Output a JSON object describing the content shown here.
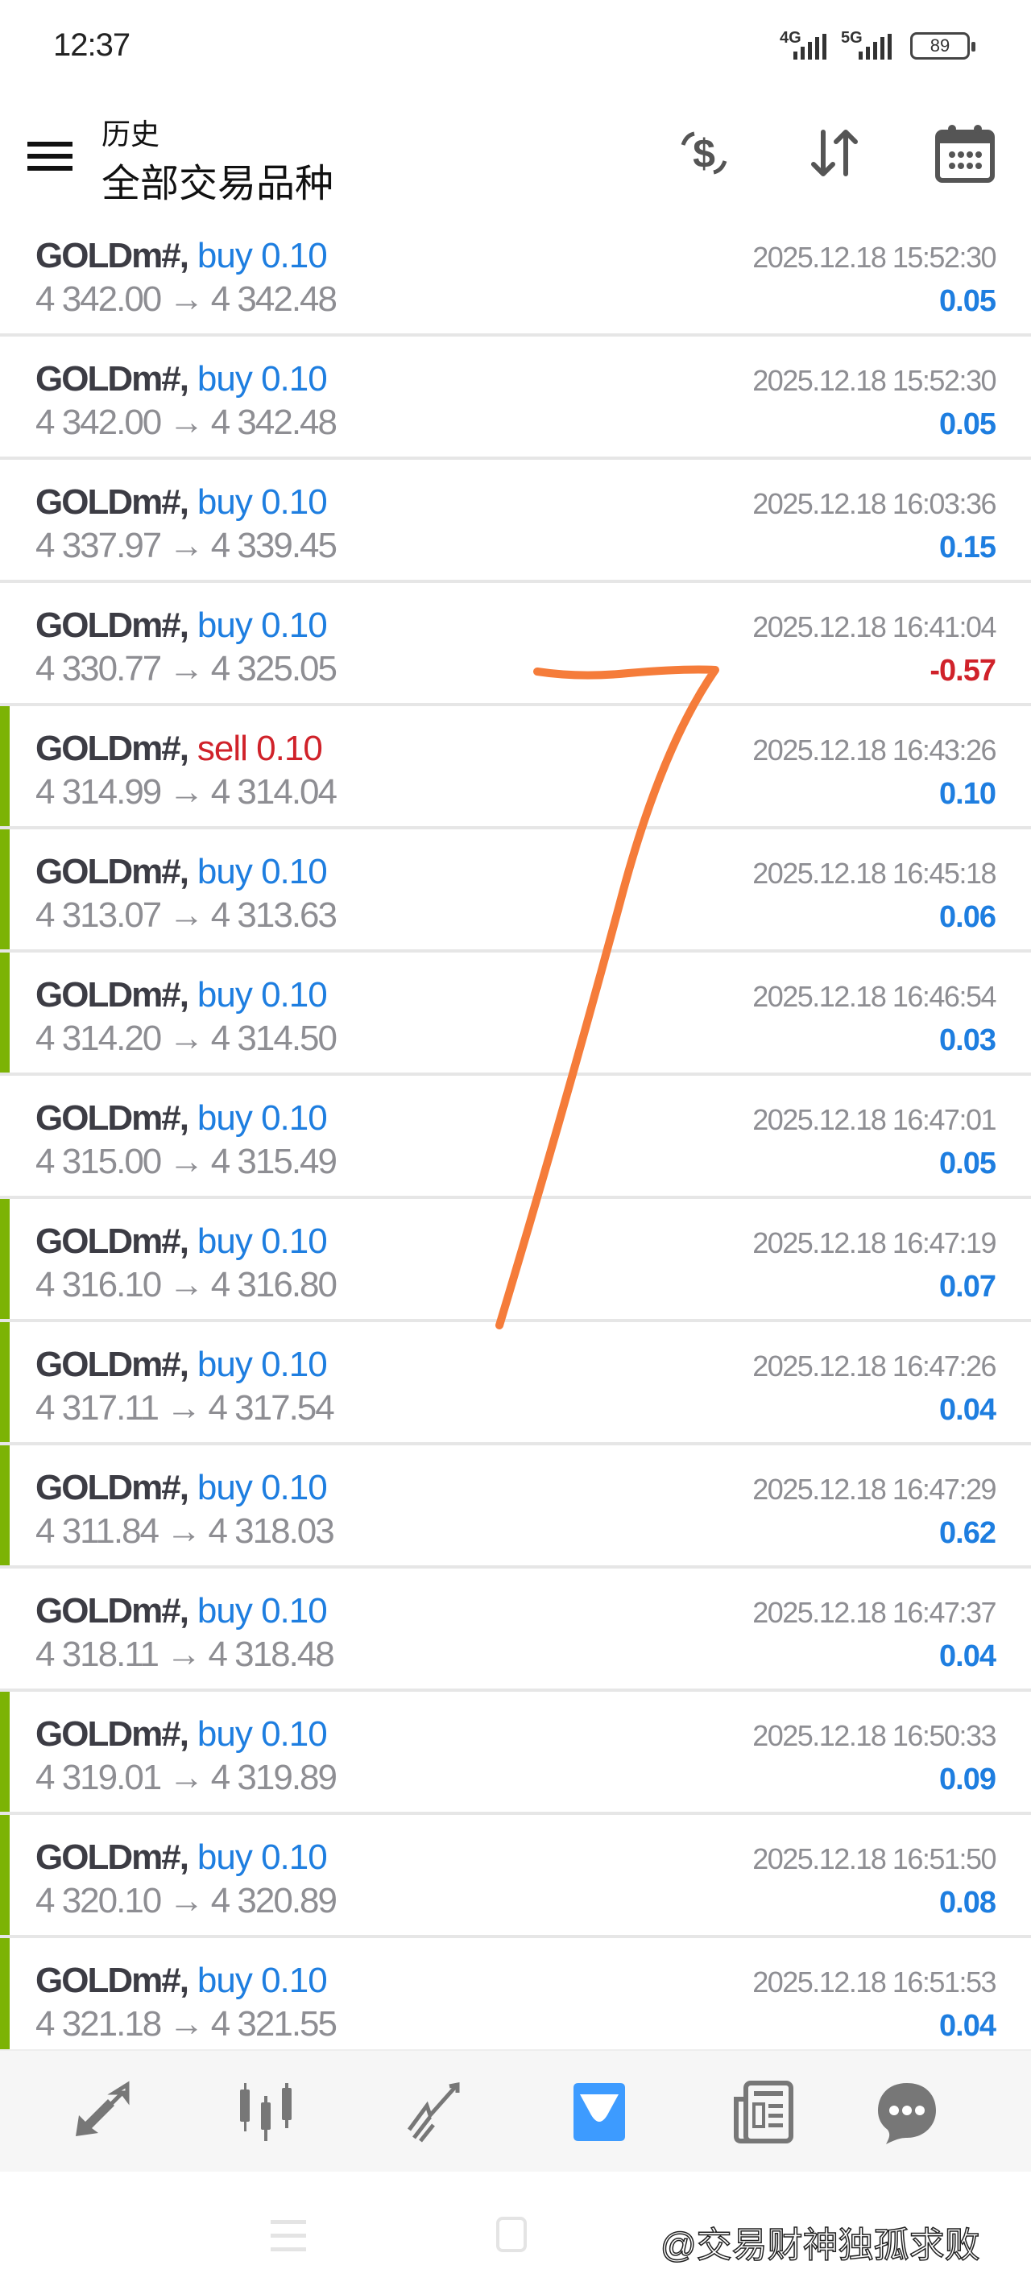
{
  "status_bar": {
    "time": "12:37",
    "network1": "4G",
    "network2": "5G",
    "battery": "89"
  },
  "header": {
    "subtitle": "历史",
    "title": "全部交易品种",
    "icons": [
      "currency-exchange-icon",
      "sort-icon",
      "calendar-icon"
    ]
  },
  "colors": {
    "buy": "#1e7ee0",
    "sell": "#d0222a",
    "profit_positive": "#1e7ee0",
    "profit_negative": "#d0222a",
    "row_marker": "#7cb305",
    "active_nav": "#3d9bff",
    "annotation": "#f57c3a"
  },
  "trades": [
    {
      "symbol": "GOLDm#,",
      "side": "buy 0.10",
      "type": "buy",
      "prices": "4 342.00 → 4 342.48",
      "time": "2025.12.18 15:52:30",
      "profit": "0.05",
      "marked": false
    },
    {
      "symbol": "GOLDm#,",
      "side": "buy 0.10",
      "type": "buy",
      "prices": "4 342.00 → 4 342.48",
      "time": "2025.12.18 15:52:30",
      "profit": "0.05",
      "marked": false
    },
    {
      "symbol": "GOLDm#,",
      "side": "buy 0.10",
      "type": "buy",
      "prices": "4 337.97 → 4 339.45",
      "time": "2025.12.18 16:03:36",
      "profit": "0.15",
      "marked": false
    },
    {
      "symbol": "GOLDm#,",
      "side": "buy 0.10",
      "type": "buy",
      "prices": "4 330.77 → 4 325.05",
      "time": "2025.12.18 16:41:04",
      "profit": "-0.57",
      "marked": false
    },
    {
      "symbol": "GOLDm#,",
      "side": "sell 0.10",
      "type": "sell",
      "prices": "4 314.99 → 4 314.04",
      "time": "2025.12.18 16:43:26",
      "profit": "0.10",
      "marked": true
    },
    {
      "symbol": "GOLDm#,",
      "side": "buy 0.10",
      "type": "buy",
      "prices": "4 313.07 → 4 313.63",
      "time": "2025.12.18 16:45:18",
      "profit": "0.06",
      "marked": true
    },
    {
      "symbol": "GOLDm#,",
      "side": "buy 0.10",
      "type": "buy",
      "prices": "4 314.20 → 4 314.50",
      "time": "2025.12.18 16:46:54",
      "profit": "0.03",
      "marked": true
    },
    {
      "symbol": "GOLDm#,",
      "side": "buy 0.10",
      "type": "buy",
      "prices": "4 315.00 → 4 315.49",
      "time": "2025.12.18 16:47:01",
      "profit": "0.05",
      "marked": false
    },
    {
      "symbol": "GOLDm#,",
      "side": "buy 0.10",
      "type": "buy",
      "prices": "4 316.10 → 4 316.80",
      "time": "2025.12.18 16:47:19",
      "profit": "0.07",
      "marked": true
    },
    {
      "symbol": "GOLDm#,",
      "side": "buy 0.10",
      "type": "buy",
      "prices": "4 317.11 → 4 317.54",
      "time": "2025.12.18 16:47:26",
      "profit": "0.04",
      "marked": true
    },
    {
      "symbol": "GOLDm#,",
      "side": "buy 0.10",
      "type": "buy",
      "prices": "4 311.84 → 4 318.03",
      "time": "2025.12.18 16:47:29",
      "profit": "0.62",
      "marked": true
    },
    {
      "symbol": "GOLDm#,",
      "side": "buy 0.10",
      "type": "buy",
      "prices": "4 318.11 → 4 318.48",
      "time": "2025.12.18 16:47:37",
      "profit": "0.04",
      "marked": false
    },
    {
      "symbol": "GOLDm#,",
      "side": "buy 0.10",
      "type": "buy",
      "prices": "4 319.01 → 4 319.89",
      "time": "2025.12.18 16:50:33",
      "profit": "0.09",
      "marked": true
    },
    {
      "symbol": "GOLDm#,",
      "side": "buy 0.10",
      "type": "buy",
      "prices": "4 320.10 → 4 320.89",
      "time": "2025.12.18 16:51:50",
      "profit": "0.08",
      "marked": true
    },
    {
      "symbol": "GOLDm#,",
      "side": "buy 0.10",
      "type": "buy",
      "prices": "4 321.18 → 4 321.55",
      "time": "2025.12.18 16:51:53",
      "profit": "0.04",
      "marked": true
    }
  ],
  "bottom_nav": {
    "items": [
      "quotes-icon",
      "chart-icon",
      "trade-icon",
      "history-icon",
      "news-icon",
      "chat-icon"
    ],
    "active": "history-icon"
  },
  "watermark": "@交易财神独孤求败"
}
